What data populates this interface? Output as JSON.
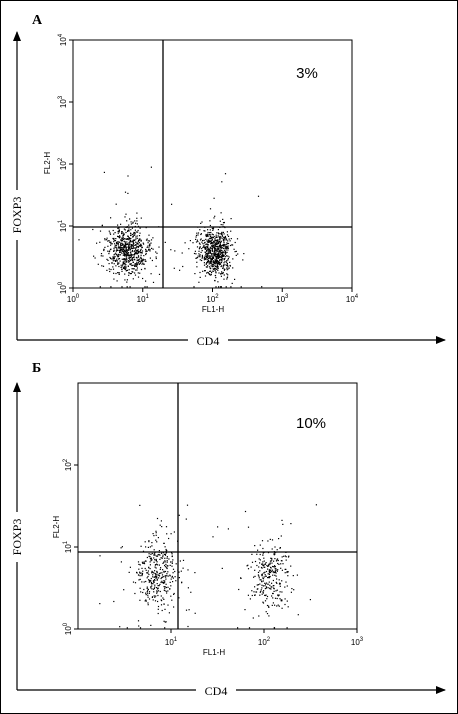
{
  "figure": {
    "panels": [
      {
        "id": "A",
        "panel_label": "А",
        "outer_ylabel": "FOXP3",
        "outer_xlabel": "CD4",
        "inner_ylabel": "FL2-H",
        "inner_xlabel": "FL1-H",
        "percent_label": "3%"
      },
      {
        "id": "B",
        "panel_label": "Б",
        "outer_ylabel": "FOXP3",
        "outer_xlabel": "CD4",
        "inner_ylabel": "FL2-H",
        "inner_xlabel": "FL1-H",
        "percent_label": "10%"
      }
    ]
  },
  "chart_data": [
    {
      "type": "scatter",
      "title": "А",
      "xlabel": "FL1-H",
      "ylabel": "FL2-H",
      "x_scale": "log",
      "y_scale": "log",
      "xlim": [
        1,
        10000
      ],
      "ylim": [
        1,
        10000
      ],
      "x_ticks": [
        {
          "base": "10",
          "exp": "0",
          "value": 1
        },
        {
          "base": "10",
          "exp": "1",
          "value": 10
        },
        {
          "base": "10",
          "exp": "2",
          "value": 100
        },
        {
          "base": "10",
          "exp": "3",
          "value": 1000
        },
        {
          "base": "10",
          "exp": "4",
          "value": 10000
        }
      ],
      "y_ticks": [
        {
          "base": "10",
          "exp": "0",
          "value": 1
        },
        {
          "base": "10",
          "exp": "1",
          "value": 10
        },
        {
          "base": "10",
          "exp": "2",
          "value": 100
        },
        {
          "base": "10",
          "exp": "3",
          "value": 1000
        },
        {
          "base": "10",
          "exp": "4",
          "value": 10000
        }
      ],
      "gate": {
        "x": 14,
        "y": 8
      },
      "quadrant_annotation": {
        "quadrant": "upper-right",
        "text": "3%"
      },
      "populations": [
        {
          "center": [
            6,
            4
          ],
          "spread_decades": [
            0.16,
            0.2
          ],
          "n": 650,
          "outliers": 50
        },
        {
          "center": [
            110,
            4
          ],
          "spread_decades": [
            0.12,
            0.2
          ],
          "n": 650,
          "outliers": 50
        }
      ],
      "grid": false
    },
    {
      "type": "scatter",
      "title": "Б",
      "xlabel": "FL1-H",
      "ylabel": "FL2-H",
      "x_scale": "log",
      "y_scale": "log",
      "xlim": [
        1,
        1000
      ],
      "ylim": [
        1,
        1000
      ],
      "x_ticks": [
        {
          "base": "10",
          "exp": "1",
          "value": 10
        },
        {
          "base": "10",
          "exp": "2",
          "value": 100
        },
        {
          "base": "10",
          "exp": "3",
          "value": 1000
        }
      ],
      "y_ticks": [
        {
          "base": "10",
          "exp": "0",
          "value": 1
        },
        {
          "base": "10",
          "exp": "1",
          "value": 10
        },
        {
          "base": "10",
          "exp": "2",
          "value": 100
        }
      ],
      "gate": {
        "x": 20,
        "y": 6
      },
      "quadrant_annotation": {
        "quadrant": "upper-right",
        "text": "10%"
      },
      "populations": [
        {
          "center": [
            7,
            4.5
          ],
          "spread_decades": [
            0.12,
            0.2
          ],
          "n": 340,
          "outliers": 40
        },
        {
          "center": [
            120,
            4.5
          ],
          "spread_decades": [
            0.1,
            0.2
          ],
          "n": 260,
          "outliers": 40
        }
      ],
      "grid": false
    }
  ]
}
